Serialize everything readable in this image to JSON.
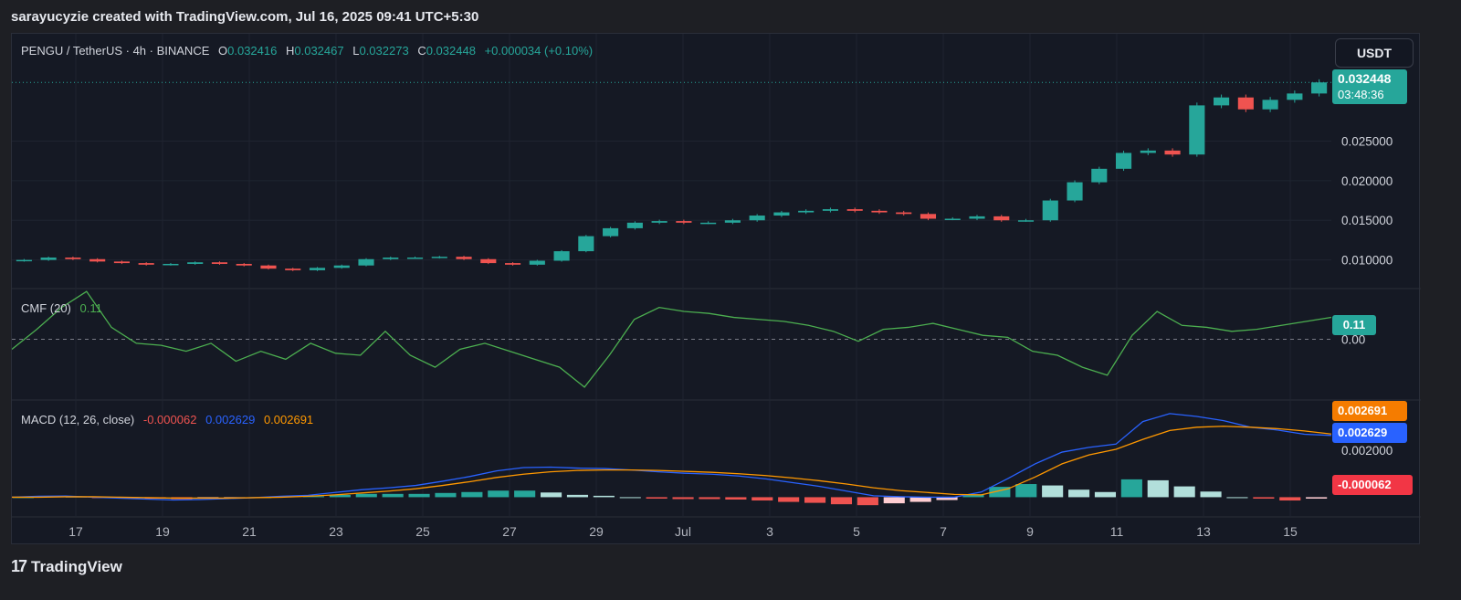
{
  "header": {
    "text": "sarayucyzie created with TradingView.com, Jul 16, 2025 09:41 UTC+5:30"
  },
  "footer": {
    "brand": "TradingView"
  },
  "currency": "USDT",
  "colors": {
    "up": "#26a69a",
    "down": "#ef5350",
    "cmf": "#4caf50",
    "macd": "#2962ff",
    "signal": "#ff9800",
    "bg": "#151924"
  },
  "main_legend": {
    "symbol": "PENGU / TetherUS · 4h · BINANCE",
    "o_label": "O",
    "o": "0.032416",
    "h_label": "H",
    "h": "0.032467",
    "l_label": "L",
    "l": "0.032273",
    "c_label": "C",
    "c": "0.032448",
    "change": "+0.000034 (+0.10%)"
  },
  "last_price": {
    "value": "0.032448",
    "countdown": "03:48:36"
  },
  "cmf_legend": {
    "name": "CMF (20)",
    "value": "0.11"
  },
  "cmf_badge": "0.11",
  "macd_legend": {
    "name": "MACD (12, 26, close)",
    "hist": "-0.000062",
    "macd": "0.002629",
    "signal": "0.002691"
  },
  "macd_badges": {
    "signal": "0.002691",
    "macd": "0.002629",
    "hist": "-0.000062"
  },
  "chart_data": [
    {
      "type": "candlestick",
      "title": "PENGU / TetherUS · 4h · BINANCE",
      "x_ticks": [
        "17",
        "19",
        "21",
        "23",
        "25",
        "27",
        "29",
        "Jul",
        "3",
        "5",
        "7",
        "9",
        "11",
        "13",
        "15"
      ],
      "y_ticks": [
        "0.010000",
        "0.015000",
        "0.020000",
        "0.025000"
      ],
      "ylim": [
        0.0065,
        0.0345
      ],
      "close_series_approx": [
        0.01,
        0.0103,
        0.0101,
        0.0098,
        0.0096,
        0.0094,
        0.0095,
        0.0097,
        0.0095,
        0.0093,
        0.0089,
        0.0087,
        0.009,
        0.0093,
        0.0101,
        0.0103,
        0.0103,
        0.0104,
        0.0101,
        0.0096,
        0.0094,
        0.0099,
        0.0111,
        0.013,
        0.014,
        0.0147,
        0.0149,
        0.0147,
        0.0147,
        0.015,
        0.0156,
        0.016,
        0.0162,
        0.0164,
        0.0162,
        0.016,
        0.0158,
        0.0152,
        0.0152,
        0.0155,
        0.015,
        0.015,
        0.0175,
        0.0198,
        0.0215,
        0.0235,
        0.0238,
        0.0233,
        0.0295,
        0.0305,
        0.029,
        0.0302,
        0.031,
        0.0324
      ]
    },
    {
      "type": "line",
      "name": "CMF (20)",
      "y_ticks": [
        "0.00"
      ],
      "ylim": [
        -0.3,
        0.25
      ],
      "values": [
        -0.05,
        0.05,
        0.16,
        0.24,
        0.06,
        -0.02,
        -0.03,
        -0.06,
        -0.02,
        -0.11,
        -0.06,
        -0.1,
        -0.02,
        -0.07,
        -0.08,
        0.04,
        -0.08,
        -0.14,
        -0.05,
        -0.02,
        -0.06,
        -0.1,
        -0.14,
        -0.24,
        -0.08,
        0.1,
        0.16,
        0.14,
        0.13,
        0.11,
        0.1,
        0.09,
        0.07,
        0.04,
        -0.01,
        0.05,
        0.06,
        0.08,
        0.05,
        0.02,
        0.01,
        -0.06,
        -0.08,
        -0.14,
        -0.18,
        0.02,
        0.14,
        0.07,
        0.06,
        0.04,
        0.05,
        0.07,
        0.09,
        0.11
      ]
    },
    {
      "type": "line+bar",
      "name": "MACD (12, 26, close)",
      "y_ticks": [
        "0.002000"
      ],
      "ylim": [
        -0.0008,
        0.0041
      ],
      "macd": [
        0.0,
        4e-05,
        5e-05,
        0.0,
        -4e-05,
        -8e-05,
        -0.00012,
        -0.0001,
        -6e-05,
        -2e-05,
        4e-05,
        8e-05,
        0.0002,
        0.00032,
        0.0004,
        0.0005,
        0.00068,
        0.00088,
        0.00112,
        0.00126,
        0.00128,
        0.00124,
        0.00122,
        0.00116,
        0.00108,
        0.00102,
        0.00098,
        0.0009,
        0.00078,
        0.00062,
        0.00046,
        0.00026,
        6e-05,
        2e-05,
        0.0,
        0.0,
        0.00022,
        0.0008,
        0.00142,
        0.00192,
        0.00212,
        0.00226,
        0.00322,
        0.00356,
        0.00344,
        0.00326,
        0.00298,
        0.00286,
        0.00268,
        0.00263
      ],
      "signal": [
        0.0,
        0.0,
        2e-05,
        2e-05,
        0.0,
        -2e-05,
        -4e-05,
        -4e-05,
        -4e-05,
        -2e-05,
        0.0,
        4e-05,
        0.0001,
        0.00018,
        0.00026,
        0.00036,
        0.0005,
        0.00066,
        0.00084,
        0.00098,
        0.00108,
        0.00114,
        0.00116,
        0.00116,
        0.00114,
        0.0011,
        0.00106,
        0.001,
        0.00092,
        0.00082,
        0.0007,
        0.00056,
        0.0004,
        0.00028,
        0.0002,
        0.00012,
        0.0001,
        0.00036,
        0.00086,
        0.00142,
        0.0018,
        0.00204,
        0.00246,
        0.00284,
        0.00298,
        0.00302,
        0.00298,
        0.00292,
        0.00282,
        0.00269
      ],
      "histogram": [
        0.0,
        4e-05,
        3e-05,
        -2e-05,
        -4e-05,
        -6e-05,
        -8e-05,
        -6e-05,
        -2e-05,
        0.0,
        4e-05,
        4e-05,
        0.0001,
        0.00014,
        0.00014,
        0.00014,
        0.00018,
        0.00022,
        0.00028,
        0.00028,
        0.0002,
        0.0001,
        6e-05,
        0.0,
        -6e-05,
        -8e-05,
        -8e-05,
        -0.0001,
        -0.00014,
        -0.0002,
        -0.00024,
        -0.0003,
        -0.00034,
        -0.00026,
        -0.0002,
        -0.00012,
        0.00012,
        0.00044,
        0.00056,
        0.0005,
        0.00032,
        0.00022,
        0.00076,
        0.00072,
        0.00046,
        0.00024,
        0.0,
        -6e-05,
        -0.00014,
        -6e-05
      ]
    }
  ]
}
